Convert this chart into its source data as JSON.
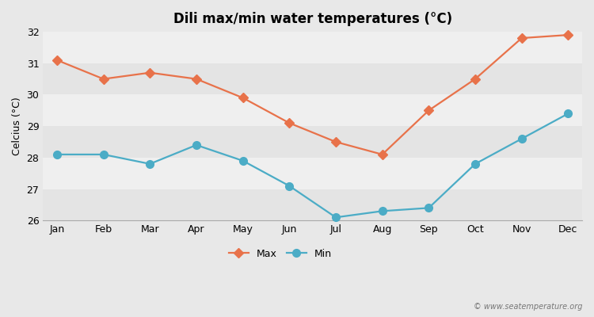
{
  "title": "Dili max/min water temperatures (°C)",
  "ylabel": "Celcius (°C)",
  "months": [
    "Jan",
    "Feb",
    "Mar",
    "Apr",
    "May",
    "Jun",
    "Jul",
    "Aug",
    "Sep",
    "Oct",
    "Nov",
    "Dec"
  ],
  "max_temps": [
    31.1,
    30.5,
    30.7,
    30.5,
    29.9,
    29.1,
    28.5,
    28.1,
    29.5,
    30.5,
    31.8,
    31.9
  ],
  "min_temps": [
    28.1,
    28.1,
    27.8,
    28.4,
    27.9,
    27.1,
    26.1,
    26.3,
    26.4,
    27.8,
    28.6,
    29.4
  ],
  "max_color": "#e8724a",
  "min_color": "#4bacc6",
  "bg_color": "#e8e8e8",
  "plot_bg_color": "#efefef",
  "band_light": "#efefef",
  "band_dark": "#e4e4e4",
  "grid_color": "#ffffff",
  "ylim": [
    26,
    32
  ],
  "yticks": [
    26,
    27,
    28,
    29,
    30,
    31,
    32
  ],
  "watermark": "© www.seatemperature.org",
  "legend_max": "Max",
  "legend_min": "Min",
  "title_fontsize": 12,
  "axis_label_fontsize": 9,
  "tick_fontsize": 9,
  "legend_fontsize": 9,
  "max_marker": "D",
  "min_marker": "o",
  "max_markersize": 6,
  "min_markersize": 7,
  "linewidth": 1.6
}
